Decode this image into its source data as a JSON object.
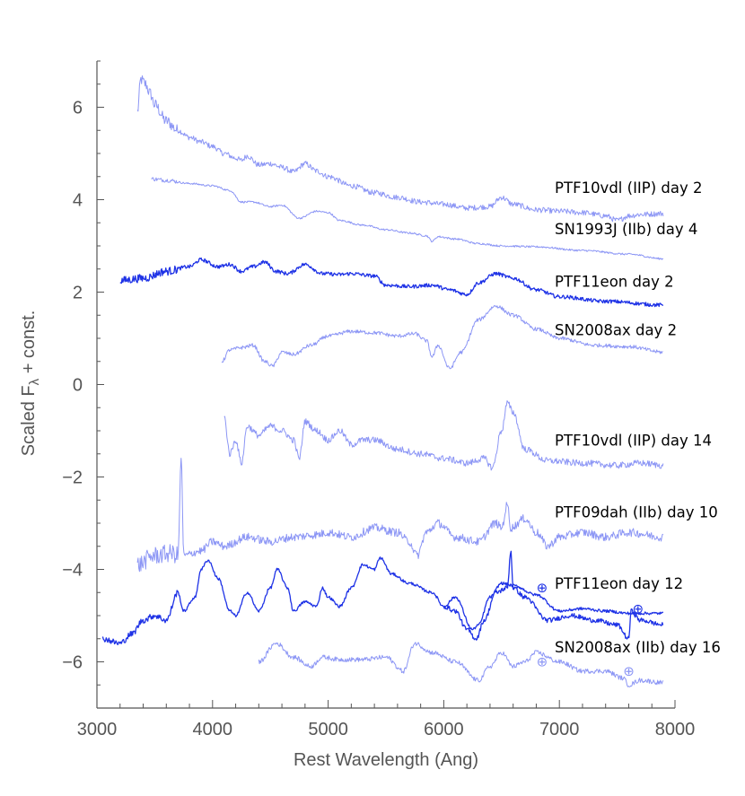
{
  "chart_data": {
    "type": "line",
    "title": "",
    "xlabel": "Rest Wavelength (Ang)",
    "ylabel": "Scaled F",
    "ylabel_subscript": "λ",
    "ylabel_suffix": " + const.",
    "xlim": [
      3000,
      8000
    ],
    "ylim": [
      -7.0,
      7.0
    ],
    "xticks": [
      3000,
      4000,
      5000,
      6000,
      7000,
      8000
    ],
    "yticks": [
      6,
      4,
      2,
      0,
      -2,
      -4,
      -6
    ],
    "ytick_labels": [
      "6",
      "4",
      "2",
      "0",
      "−2",
      "−4",
      "−6"
    ],
    "earth_symbol": "⊕",
    "colors": {
      "light": "#8c96f5",
      "dark": "#1e32e6",
      "axis": "#555555"
    },
    "series": [
      {
        "name": "PTF10vdl (IIP) day 2",
        "color": "light",
        "noise": 0.06,
        "points": [
          [
            3350,
            5.9
          ],
          [
            3380,
            6.6
          ],
          [
            3420,
            6.5
          ],
          [
            3460,
            6.3
          ],
          [
            3500,
            6.05
          ],
          [
            3600,
            5.7
          ],
          [
            3700,
            5.5
          ],
          [
            3800,
            5.35
          ],
          [
            3900,
            5.25
          ],
          [
            4000,
            5.15
          ],
          [
            4100,
            5.0
          ],
          [
            4200,
            4.9
          ],
          [
            4250,
            4.85
          ],
          [
            4300,
            4.95
          ],
          [
            4400,
            4.75
          ],
          [
            4500,
            4.78
          ],
          [
            4600,
            4.7
          ],
          [
            4700,
            4.6
          ],
          [
            4800,
            4.78
          ],
          [
            4900,
            4.62
          ],
          [
            5000,
            4.5
          ],
          [
            5200,
            4.3
          ],
          [
            5400,
            4.15
          ],
          [
            5600,
            4.05
          ],
          [
            5800,
            3.95
          ],
          [
            6000,
            3.9
          ],
          [
            6200,
            3.82
          ],
          [
            6400,
            3.85
          ],
          [
            6500,
            4.05
          ],
          [
            6600,
            3.9
          ],
          [
            6800,
            3.78
          ],
          [
            7000,
            3.75
          ],
          [
            7200,
            3.72
          ],
          [
            7400,
            3.65
          ],
          [
            7500,
            3.55
          ],
          [
            7600,
            3.65
          ],
          [
            7700,
            3.68
          ],
          [
            7900,
            3.7
          ]
        ]
      },
      {
        "name": "SN1993J (IIb) day 4",
        "color": "light",
        "noise": 0.02,
        "points": [
          [
            3470,
            4.45
          ],
          [
            3600,
            4.42
          ],
          [
            3800,
            4.35
          ],
          [
            4000,
            4.3
          ],
          [
            4150,
            4.2
          ],
          [
            4250,
            3.95
          ],
          [
            4350,
            3.95
          ],
          [
            4500,
            3.85
          ],
          [
            4600,
            3.88
          ],
          [
            4750,
            3.6
          ],
          [
            4900,
            3.75
          ],
          [
            5000,
            3.72
          ],
          [
            5100,
            3.55
          ],
          [
            5300,
            3.45
          ],
          [
            5500,
            3.35
          ],
          [
            5700,
            3.28
          ],
          [
            5850,
            3.22
          ],
          [
            5900,
            3.1
          ],
          [
            5950,
            3.2
          ],
          [
            6100,
            3.15
          ],
          [
            6300,
            3.05
          ],
          [
            6500,
            3.0
          ],
          [
            6800,
            2.98
          ],
          [
            7200,
            2.9
          ],
          [
            7600,
            2.82
          ],
          [
            7900,
            2.72
          ]
        ]
      },
      {
        "name": "PTF11eon day 2",
        "color": "dark",
        "noise": 0.04,
        "points": [
          [
            3200,
            2.25
          ],
          [
            3400,
            2.3
          ],
          [
            3600,
            2.45
          ],
          [
            3800,
            2.55
          ],
          [
            3900,
            2.7
          ],
          [
            4050,
            2.55
          ],
          [
            4150,
            2.6
          ],
          [
            4250,
            2.45
          ],
          [
            4350,
            2.55
          ],
          [
            4450,
            2.65
          ],
          [
            4550,
            2.45
          ],
          [
            4650,
            2.4
          ],
          [
            4800,
            2.6
          ],
          [
            4950,
            2.4
          ],
          [
            5100,
            2.38
          ],
          [
            5200,
            2.4
          ],
          [
            5400,
            2.35
          ],
          [
            5500,
            2.15
          ],
          [
            5700,
            2.12
          ],
          [
            5900,
            2.15
          ],
          [
            6050,
            2.05
          ],
          [
            6200,
            1.95
          ],
          [
            6300,
            2.2
          ],
          [
            6450,
            2.4
          ],
          [
            6600,
            2.3
          ],
          [
            6800,
            2.05
          ],
          [
            7000,
            1.9
          ],
          [
            7400,
            1.8
          ],
          [
            7900,
            1.72
          ]
        ]
      },
      {
        "name": "SN2008ax day 2",
        "color": "light",
        "noise": 0.04,
        "points": [
          [
            4080,
            0.5
          ],
          [
            4150,
            0.75
          ],
          [
            4250,
            0.8
          ],
          [
            4350,
            0.85
          ],
          [
            4450,
            0.5
          ],
          [
            4520,
            0.4
          ],
          [
            4600,
            0.7
          ],
          [
            4700,
            0.65
          ],
          [
            4850,
            0.85
          ],
          [
            5000,
            1.05
          ],
          [
            5200,
            1.15
          ],
          [
            5400,
            1.12
          ],
          [
            5600,
            1.05
          ],
          [
            5750,
            1.1
          ],
          [
            5850,
            0.95
          ],
          [
            5900,
            0.6
          ],
          [
            5950,
            0.85
          ],
          [
            6050,
            0.35
          ],
          [
            6150,
            0.7
          ],
          [
            6300,
            1.4
          ],
          [
            6450,
            1.7
          ],
          [
            6600,
            1.5
          ],
          [
            6800,
            1.2
          ],
          [
            7000,
            1.0
          ],
          [
            7300,
            0.85
          ],
          [
            7600,
            0.82
          ],
          [
            7900,
            0.7
          ]
        ]
      },
      {
        "name": "PTF10vdl (IIP) day 14",
        "color": "light",
        "noise": 0.07,
        "points": [
          [
            4100,
            -0.7
          ],
          [
            4150,
            -1.5
          ],
          [
            4200,
            -1.2
          ],
          [
            4250,
            -1.7
          ],
          [
            4300,
            -0.9
          ],
          [
            4400,
            -1.1
          ],
          [
            4500,
            -0.9
          ],
          [
            4600,
            -1.0
          ],
          [
            4700,
            -1.2
          ],
          [
            4750,
            -1.6
          ],
          [
            4800,
            -0.8
          ],
          [
            4900,
            -1.0
          ],
          [
            5000,
            -1.2
          ],
          [
            5100,
            -1.0
          ],
          [
            5200,
            -1.3
          ],
          [
            5300,
            -1.2
          ],
          [
            5400,
            -1.2
          ],
          [
            5600,
            -1.4
          ],
          [
            5800,
            -1.5
          ],
          [
            6000,
            -1.6
          ],
          [
            6200,
            -1.7
          ],
          [
            6350,
            -1.6
          ],
          [
            6420,
            -1.8
          ],
          [
            6500,
            -1.0
          ],
          [
            6550,
            -0.4
          ],
          [
            6600,
            -0.6
          ],
          [
            6700,
            -1.4
          ],
          [
            6900,
            -1.65
          ],
          [
            7200,
            -1.7
          ],
          [
            7500,
            -1.75
          ],
          [
            7700,
            -1.7
          ],
          [
            7900,
            -1.75
          ]
        ]
      },
      {
        "name": "PTF09dah (IIb) day 10",
        "color": "light",
        "noise": 0.09,
        "points": [
          [
            3350,
            -3.9
          ],
          [
            3500,
            -3.7
          ],
          [
            3650,
            -3.65
          ],
          [
            3700,
            -3.7
          ],
          [
            3730,
            -1.6
          ],
          [
            3750,
            -3.7
          ],
          [
            3900,
            -3.6
          ],
          [
            4000,
            -3.4
          ],
          [
            4100,
            -3.5
          ],
          [
            4300,
            -3.3
          ],
          [
            4500,
            -3.4
          ],
          [
            4700,
            -3.3
          ],
          [
            4900,
            -3.25
          ],
          [
            5000,
            -3.2
          ],
          [
            5200,
            -3.3
          ],
          [
            5400,
            -3.1
          ],
          [
            5600,
            -3.2
          ],
          [
            5700,
            -3.4
          ],
          [
            5770,
            -3.7
          ],
          [
            5850,
            -3.2
          ],
          [
            5950,
            -3.0
          ],
          [
            6100,
            -3.3
          ],
          [
            6300,
            -3.4
          ],
          [
            6450,
            -3.0
          ],
          [
            6500,
            -3.1
          ],
          [
            6550,
            -2.6
          ],
          [
            6580,
            -3.1
          ],
          [
            6700,
            -2.9
          ],
          [
            6800,
            -3.2
          ],
          [
            6900,
            -3.5
          ],
          [
            7000,
            -3.3
          ],
          [
            7200,
            -3.2
          ],
          [
            7400,
            -3.3
          ],
          [
            7600,
            -3.2
          ],
          [
            7900,
            -3.3
          ]
        ]
      },
      {
        "name": "PTF11eon day 12",
        "color": "dark",
        "noise": 0.03,
        "points": [
          [
            3050,
            -5.5
          ],
          [
            3200,
            -5.6
          ],
          [
            3300,
            -5.4
          ],
          [
            3400,
            -5.1
          ],
          [
            3500,
            -5.0
          ],
          [
            3600,
            -5.1
          ],
          [
            3700,
            -4.5
          ],
          [
            3750,
            -4.9
          ],
          [
            3850,
            -4.6
          ],
          [
            3900,
            -4.0
          ],
          [
            3960,
            -3.8
          ],
          [
            4050,
            -4.2
          ],
          [
            4150,
            -4.9
          ],
          [
            4200,
            -5.0
          ],
          [
            4300,
            -4.5
          ],
          [
            4400,
            -4.9
          ],
          [
            4500,
            -4.4
          ],
          [
            4560,
            -4.0
          ],
          [
            4650,
            -4.4
          ],
          [
            4700,
            -4.9
          ],
          [
            4800,
            -4.7
          ],
          [
            4900,
            -4.8
          ],
          [
            4950,
            -4.4
          ],
          [
            5000,
            -4.6
          ],
          [
            5100,
            -4.8
          ],
          [
            5200,
            -4.4
          ],
          [
            5300,
            -3.9
          ],
          [
            5400,
            -4.0
          ],
          [
            5450,
            -3.75
          ],
          [
            5550,
            -4.1
          ],
          [
            5700,
            -4.3
          ],
          [
            5900,
            -4.5
          ],
          [
            6000,
            -4.8
          ],
          [
            6100,
            -4.6
          ],
          [
            6250,
            -5.3
          ],
          [
            6300,
            -5.2
          ],
          [
            6400,
            -4.6
          ],
          [
            6500,
            -4.3
          ],
          [
            6600,
            -4.35
          ],
          [
            6800,
            -4.55
          ],
          [
            7000,
            -4.9
          ],
          [
            7200,
            -4.85
          ],
          [
            7400,
            -4.9
          ],
          [
            7600,
            -4.95
          ],
          [
            7800,
            -4.95
          ],
          [
            7900,
            -4.95
          ]
        ]
      },
      {
        "name": "PTF11eon day 12b",
        "color": "dark",
        "noise": 0.05,
        "points": [
          [
            6000,
            -4.8
          ],
          [
            6100,
            -4.9
          ],
          [
            6200,
            -5.3
          ],
          [
            6280,
            -5.5
          ],
          [
            6350,
            -5.1
          ],
          [
            6450,
            -4.5
          ],
          [
            6550,
            -4.4
          ],
          [
            6580,
            -3.6
          ],
          [
            6600,
            -4.4
          ],
          [
            6700,
            -4.6
          ],
          [
            6900,
            -5.1
          ],
          [
            7100,
            -5.0
          ],
          [
            7300,
            -5.1
          ],
          [
            7500,
            -5.2
          ],
          [
            7600,
            -5.5
          ],
          [
            7620,
            -4.9
          ],
          [
            7700,
            -5.1
          ],
          [
            7900,
            -5.2
          ]
        ]
      },
      {
        "name": "SN2008ax (IIb) day 16",
        "color": "light",
        "noise": 0.05,
        "points": [
          [
            4400,
            -6.0
          ],
          [
            4550,
            -5.6
          ],
          [
            4700,
            -5.9
          ],
          [
            4850,
            -6.1
          ],
          [
            4950,
            -5.9
          ],
          [
            5100,
            -5.95
          ],
          [
            5300,
            -5.95
          ],
          [
            5500,
            -5.9
          ],
          [
            5650,
            -6.2
          ],
          [
            5750,
            -5.6
          ],
          [
            5900,
            -5.8
          ],
          [
            6100,
            -6.0
          ],
          [
            6300,
            -6.4
          ],
          [
            6400,
            -6.1
          ],
          [
            6500,
            -5.8
          ],
          [
            6600,
            -6.1
          ],
          [
            6700,
            -6.0
          ],
          [
            6800,
            -5.8
          ],
          [
            7000,
            -6.0
          ],
          [
            7200,
            -6.2
          ],
          [
            7400,
            -6.2
          ],
          [
            7550,
            -6.35
          ],
          [
            7600,
            -6.5
          ],
          [
            7700,
            -6.4
          ],
          [
            7900,
            -6.45
          ]
        ]
      }
    ],
    "labels": [
      {
        "text": "PTF10vdl (IIP) day 2",
        "x": 6960,
        "y": 4.15
      },
      {
        "text": "SN1993J (IIb) day 4",
        "x": 6960,
        "y": 3.25
      },
      {
        "text": "PTF11eon day 2",
        "x": 6960,
        "y": 2.12
      },
      {
        "text": "SN2008ax day 2",
        "x": 6960,
        "y": 1.07
      },
      {
        "text": "PTF10vdl (IIP) day 14",
        "x": 6960,
        "y": -1.32
      },
      {
        "text": "PTF09dah (IIb) day 10",
        "x": 6960,
        "y": -2.87
      },
      {
        "text": "PTF11eon day 12",
        "x": 6960,
        "y": -4.42
      },
      {
        "text": "SN2008ax (IIb) day 16",
        "x": 6960,
        "y": -5.8
      }
    ],
    "earth_markers": [
      {
        "x": 6850,
        "y": -4.4,
        "color": "dark"
      },
      {
        "x": 7680,
        "y": -4.85,
        "color": "dark"
      },
      {
        "x": 6850,
        "y": -6.0,
        "color": "light"
      },
      {
        "x": 7600,
        "y": -6.2,
        "color": "light"
      }
    ]
  }
}
